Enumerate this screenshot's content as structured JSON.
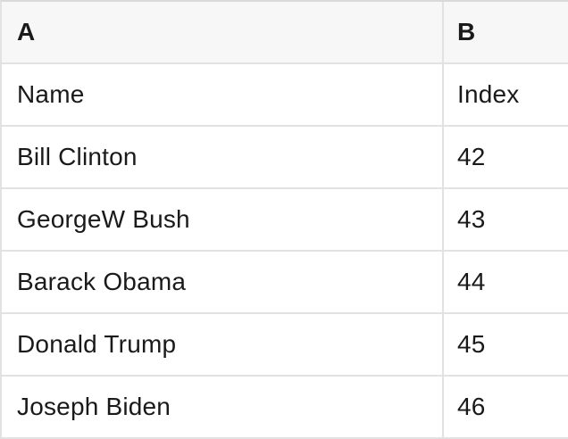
{
  "table": {
    "name": "spreadsheet-preview",
    "column_headers": [
      "A",
      "B"
    ],
    "rows": [
      {
        "A": "Name",
        "B": "Index"
      },
      {
        "A": "Bill Clinton",
        "B": "42"
      },
      {
        "A": "GeorgeW Bush",
        "B": "43"
      },
      {
        "A": "Barack Obama",
        "B": "44"
      },
      {
        "A": "Donald Trump",
        "B": "45"
      },
      {
        "A": "Joseph Biden",
        "B": "46"
      }
    ]
  },
  "colors": {
    "header_bg": "#f7f7f7",
    "row_bg": "#ffffff",
    "grid_border": "#e2e2e2",
    "top_border": "#d9d9d9",
    "text": "#1a1a1a"
  }
}
